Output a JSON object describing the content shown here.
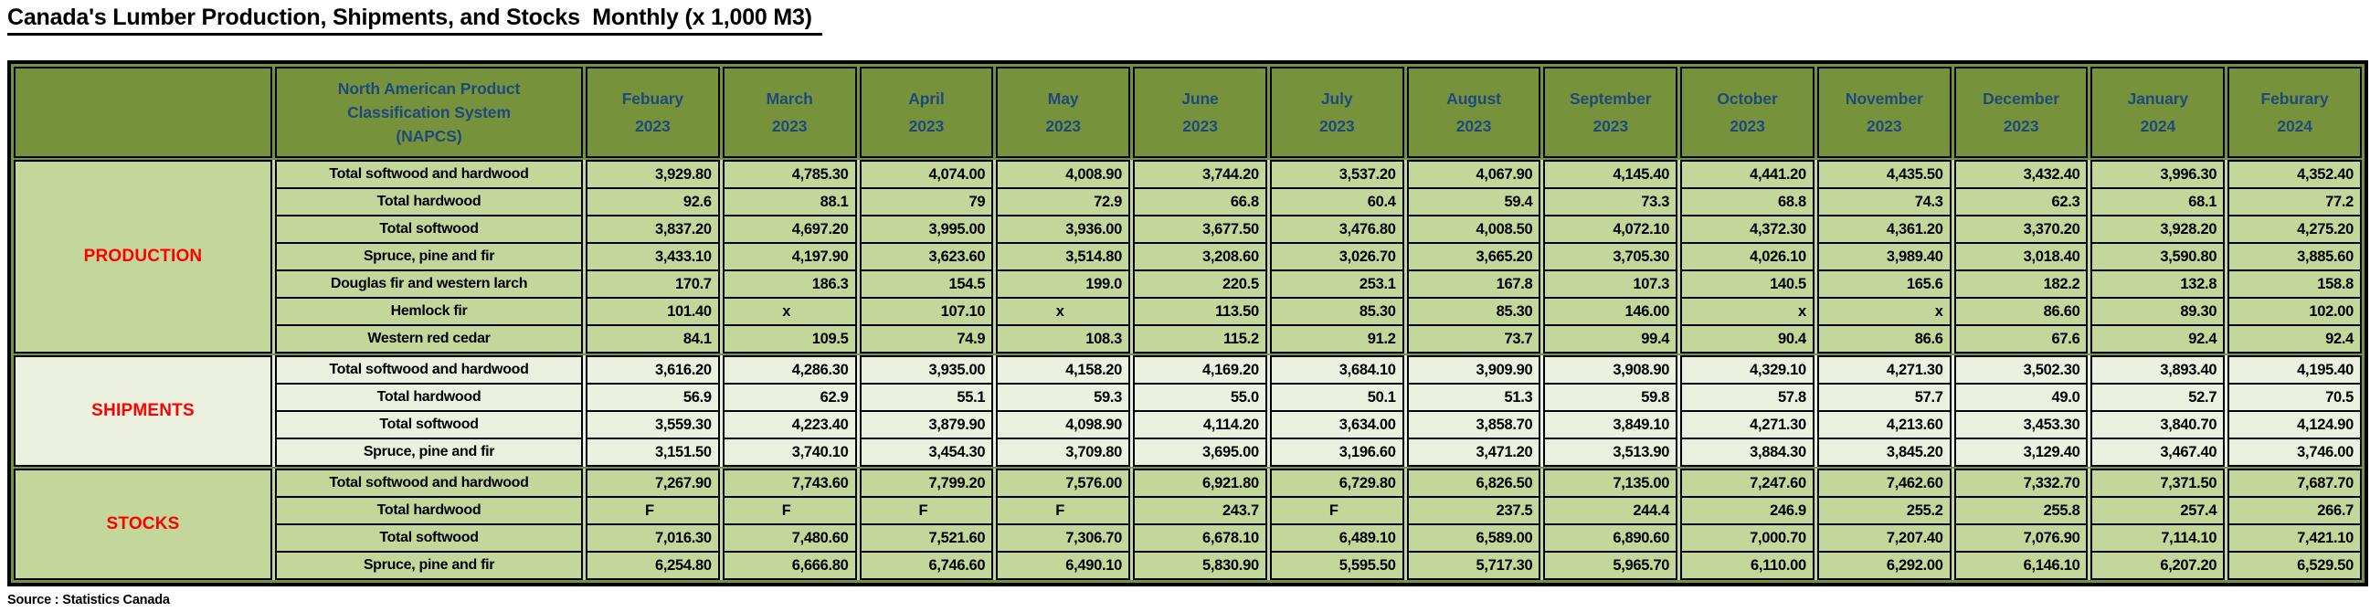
{
  "title": "Canada's Lumber Production, Shipments, and Stocks  Monthly (x 1,000 M3) ",
  "source": "Source : Statistics Canada",
  "colors": {
    "header_bg": "#76933C",
    "light_cell": "#C4D79B",
    "pale_cell": "#EBF1DE",
    "header_text": "#1F497D",
    "section_label_text": "#FF0000",
    "border": "#000000"
  },
  "table": {
    "napcs_header_lines": [
      "North American Product",
      "Classification System",
      "(NAPCS)"
    ],
    "months": [
      {
        "name": "Febuary",
        "year": "2023"
      },
      {
        "name": "March",
        "year": "2023"
      },
      {
        "name": "April",
        "year": "2023"
      },
      {
        "name": "May",
        "year": "2023"
      },
      {
        "name": "June",
        "year": "2023"
      },
      {
        "name": "July",
        "year": "2023"
      },
      {
        "name": "August",
        "year": "2023"
      },
      {
        "name": "September",
        "year": "2023"
      },
      {
        "name": "October",
        "year": "2023"
      },
      {
        "name": "November",
        "year": "2023"
      },
      {
        "name": "December",
        "year": "2023"
      },
      {
        "name": "January",
        "year": "2024"
      },
      {
        "name": "Feburary",
        "year": "2024"
      }
    ],
    "align_right_exceptions": [
      {
        "section": 0,
        "row": 5,
        "cols": [
          8,
          9
        ]
      }
    ],
    "sections": [
      {
        "label": "PRODUCTION",
        "tone": "light",
        "rows": [
          {
            "label": "Total softwood and hardwood",
            "values": [
              "3,929.80",
              "4,785.30",
              "4,074.00",
              "4,008.90",
              "3,744.20",
              "3,537.20",
              "4,067.90",
              "4,145.40",
              "4,441.20",
              "4,435.50",
              "3,432.40",
              "3,996.30",
              "4,352.40"
            ]
          },
          {
            "label": "Total hardwood",
            "values": [
              "92.6",
              "88.1",
              "79",
              "72.9",
              "66.8",
              "60.4",
              "59.4",
              "73.3",
              "68.8",
              "74.3",
              "62.3",
              "68.1",
              "77.2"
            ]
          },
          {
            "label": "Total softwood",
            "values": [
              "3,837.20",
              "4,697.20",
              "3,995.00",
              "3,936.00",
              "3,677.50",
              "3,476.80",
              "4,008.50",
              "4,072.10",
              "4,372.30",
              "4,361.20",
              "3,370.20",
              "3,928.20",
              "4,275.20"
            ]
          },
          {
            "label": "Spruce, pine and fir",
            "values": [
              "3,433.10",
              "4,197.90",
              "3,623.60",
              "3,514.80",
              "3,208.60",
              "3,026.70",
              "3,665.20",
              "3,705.30",
              "4,026.10",
              "3,989.40",
              "3,018.40",
              "3,590.80",
              "3,885.60"
            ]
          },
          {
            "label": "Douglas fir and western larch",
            "values": [
              "170.7",
              "186.3",
              "154.5",
              "199.0",
              "220.5",
              "253.1",
              "167.8",
              "107.3",
              "140.5",
              "165.6",
              "182.2",
              "132.8",
              "158.8"
            ]
          },
          {
            "label": "Hemlock fir",
            "values": [
              "101.40",
              "x",
              "107.10",
              "x",
              "113.50",
              "85.30",
              "85.30",
              "146.00",
              "x",
              "x",
              "86.60",
              "89.30",
              "102.00"
            ]
          },
          {
            "label": "Western red cedar",
            "values": [
              "84.1",
              "109.5",
              "74.9",
              "108.3",
              "115.2",
              "91.2",
              "73.7",
              "99.4",
              "90.4",
              "86.6",
              "67.6",
              "92.4",
              "92.4"
            ]
          }
        ]
      },
      {
        "label": "SHIPMENTS",
        "tone": "pale",
        "rows": [
          {
            "label": "Total softwood and hardwood",
            "values": [
              "3,616.20",
              "4,286.30",
              "3,935.00",
              "4,158.20",
              "4,169.20",
              "3,684.10",
              "3,909.90",
              "3,908.90",
              "4,329.10",
              "4,271.30",
              "3,502.30",
              "3,893.40",
              "4,195.40"
            ]
          },
          {
            "label": "Total hardwood",
            "values": [
              "56.9",
              "62.9",
              "55.1",
              "59.3",
              "55.0",
              "50.1",
              "51.3",
              "59.8",
              "57.8",
              "57.7",
              "49.0",
              "52.7",
              "70.5"
            ]
          },
          {
            "label": "Total softwood",
            "values": [
              "3,559.30",
              "4,223.40",
              "3,879.90",
              "4,098.90",
              "4,114.20",
              "3,634.00",
              "3,858.70",
              "3,849.10",
              "4,271.30",
              "4,213.60",
              "3,453.30",
              "3,840.70",
              "4,124.90"
            ]
          },
          {
            "label": "Spruce, pine and fir",
            "values": [
              "3,151.50",
              "3,740.10",
              "3,454.30",
              "3,709.80",
              "3,695.00",
              "3,196.60",
              "3,471.20",
              "3,513.90",
              "3,884.30",
              "3,845.20",
              "3,129.40",
              "3,467.40",
              "3,746.00"
            ]
          }
        ]
      },
      {
        "label": "STOCKS",
        "tone": "light",
        "rows": [
          {
            "label": "Total softwood and hardwood",
            "values": [
              "7,267.90",
              "7,743.60",
              "7,799.20",
              "7,576.00",
              "6,921.80",
              "6,729.80",
              "6,826.50",
              "7,135.00",
              "7,247.60",
              "7,462.60",
              "7,332.70",
              "7,371.50",
              "7,687.70"
            ]
          },
          {
            "label": "Total hardwood",
            "values": [
              "F",
              "F",
              "F",
              "F",
              "243.7",
              "F",
              "237.5",
              "244.4",
              "246.9",
              "255.2",
              "255.8",
              "257.4",
              "266.7"
            ]
          },
          {
            "label": "Total softwood",
            "values": [
              "7,016.30",
              "7,480.60",
              "7,521.60",
              "7,306.70",
              "6,678.10",
              "6,489.10",
              "6,589.00",
              "6,890.60",
              "7,000.70",
              "7,207.40",
              "7,076.90",
              "7,114.10",
              "7,421.10"
            ]
          },
          {
            "label": "Spruce, pine and fir",
            "values": [
              "6,254.80",
              "6,666.80",
              "6,746.60",
              "6,490.10",
              "5,830.90",
              "5,595.50",
              "5,717.30",
              "5,965.70",
              "6,110.00",
              "6,292.00",
              "6,146.10",
              "6,207.20",
              "6,529.50"
            ]
          }
        ]
      }
    ]
  }
}
